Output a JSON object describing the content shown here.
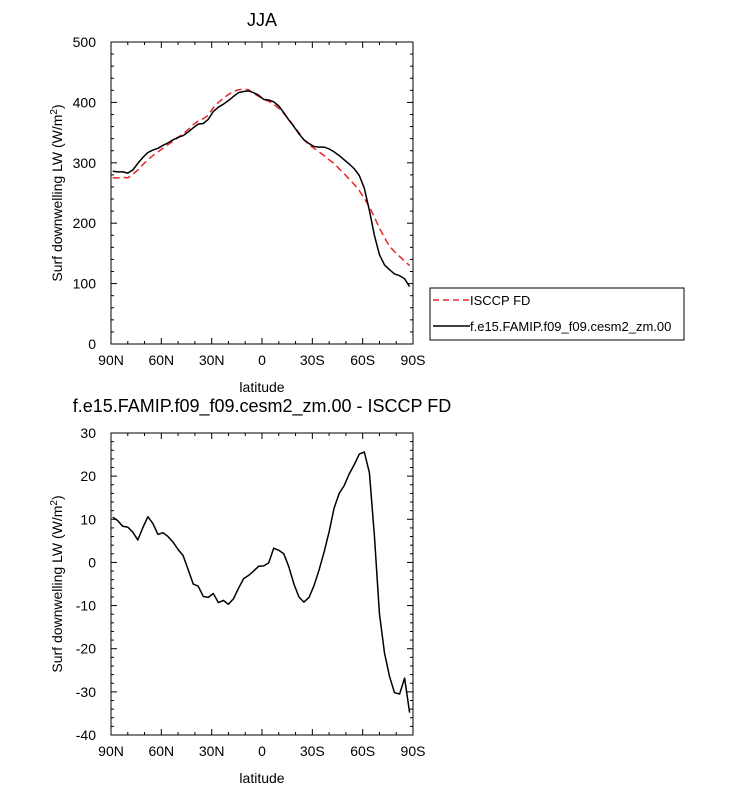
{
  "chart_data": [
    {
      "type": "line",
      "title": "JJA",
      "xlabel": "latitude",
      "ylabel": "Surf downwelling LW (W/m²)",
      "ylabel_main": "Surf downwelling LW (W/m",
      "ylabel_sup": "2",
      "ylabel_close": ")",
      "xlim": [
        90,
        -90
      ],
      "ylim": [
        0,
        500
      ],
      "xticks": [
        90,
        60,
        30,
        0,
        -30,
        -60,
        -90
      ],
      "xtick_labels": [
        "90N",
        "60N",
        "30N",
        "0",
        "30S",
        "60S",
        "90S"
      ],
      "yticks": [
        0,
        100,
        200,
        300,
        400,
        500
      ],
      "ytick_labels": [
        "0",
        "100",
        "200",
        "300",
        "400",
        "500"
      ],
      "legend": {
        "placement": "outside-right-bottom"
      },
      "series": [
        {
          "name": "ISCCP FD",
          "color": "#e8262a",
          "dash": "dashed",
          "x": [
            89,
            86,
            83,
            80,
            77,
            74,
            71,
            68,
            65,
            62,
            59,
            56,
            53,
            50,
            47,
            44,
            41,
            38,
            35,
            32,
            29,
            26,
            23,
            20,
            17,
            14,
            11,
            8,
            5,
            2,
            -1,
            -4,
            -7,
            -10,
            -13,
            -16,
            -19,
            -22,
            -25,
            -28,
            -31,
            -34,
            -37,
            -40,
            -43,
            -46,
            -49,
            -52,
            -55,
            -58,
            -61,
            -64,
            -67,
            -70,
            -73,
            -76,
            -79,
            -82,
            -85,
            -88
          ],
          "y": [
            275,
            275,
            276,
            275,
            281,
            288,
            297,
            305,
            312,
            318,
            324,
            330,
            336,
            342,
            348,
            355,
            363,
            369,
            373,
            379,
            391,
            400,
            407,
            413,
            418,
            421,
            422,
            421,
            415,
            410,
            405,
            402,
            397,
            390,
            382,
            372,
            361,
            350,
            338,
            330,
            324,
            318,
            312,
            305,
            299,
            290,
            282,
            273,
            264,
            254,
            241,
            227,
            210,
            192,
            176,
            162,
            153,
            145,
            137,
            130
          ]
        },
        {
          "name": "f.e15.FAMIP.f09_f09.cesm2_zm.00",
          "color": "#000000",
          "dash": "solid",
          "x": [
            89,
            86,
            83,
            80,
            77,
            74,
            71,
            68,
            65,
            62,
            59,
            56,
            53,
            50,
            47,
            44,
            41,
            38,
            35,
            32,
            29,
            26,
            23,
            20,
            17,
            14,
            11,
            8,
            5,
            2,
            -1,
            -4,
            -7,
            -10,
            -13,
            -16,
            -19,
            -22,
            -25,
            -28,
            -31,
            -34,
            -37,
            -40,
            -43,
            -46,
            -49,
            -52,
            -55,
            -58,
            -61,
            -64,
            -67,
            -70,
            -73,
            -76,
            -79,
            -82,
            -85,
            -88
          ],
          "y": [
            286,
            285,
            285,
            283,
            288,
            299,
            309,
            317,
            321,
            324,
            329,
            333,
            338,
            342,
            345,
            351,
            358,
            364,
            365,
            372,
            385,
            392,
            397,
            403,
            410,
            416,
            418,
            419,
            416,
            412,
            405,
            404,
            401,
            394,
            383,
            371,
            360,
            348,
            338,
            332,
            327,
            326,
            326,
            323,
            318,
            312,
            305,
            298,
            290,
            279,
            258,
            221,
            180,
            148,
            131,
            123,
            116,
            113,
            108,
            95
          ]
        }
      ]
    },
    {
      "type": "line",
      "title": "f.e15.FAMIP.f09_f09.cesm2_zm.00 - ISCCP FD",
      "xlabel": "latitude",
      "ylabel": "Surf downwelling LW (W/m²)",
      "ylabel_main": "Surf downwelling LW (W/m",
      "ylabel_sup": "2",
      "ylabel_close": ")",
      "xlim": [
        90,
        -90
      ],
      "ylim": [
        -40,
        30
      ],
      "xticks": [
        90,
        60,
        30,
        0,
        -30,
        -60,
        -90
      ],
      "xtick_labels": [
        "90N",
        "60N",
        "30N",
        "0",
        "30S",
        "60S",
        "90S"
      ],
      "yticks": [
        30,
        20,
        10,
        0,
        -10,
        -20,
        -30,
        -40
      ],
      "ytick_labels": [
        "30",
        "20",
        "10",
        "0",
        "-10",
        "-20",
        "-30",
        "-40"
      ],
      "series": [
        {
          "color": "#000000",
          "dash": "solid",
          "x": [
            89,
            86,
            83,
            80,
            77,
            74,
            71,
            68,
            65,
            62,
            59,
            56,
            53,
            50,
            47,
            44,
            41,
            38,
            35,
            32,
            29,
            26,
            23,
            20,
            17,
            14,
            11,
            8,
            5,
            2,
            -1,
            -4,
            -7,
            -10,
            -13,
            -16,
            -19,
            -22,
            -25,
            -28,
            -31,
            -34,
            -37,
            -40,
            -43,
            -46,
            -49,
            -52,
            -55,
            -58,
            -61,
            -64,
            -67,
            -70,
            -73,
            -76,
            -79,
            -82,
            -85,
            -88
          ],
          "y": [
            10.5,
            9.7,
            8.4,
            8.2,
            7.0,
            5.2,
            8.1,
            10.6,
            9.0,
            6.5,
            6.9,
            6.0,
            4.7,
            3.0,
            1.6,
            -1.7,
            -5.0,
            -5.5,
            -7.9,
            -8.1,
            -7.2,
            -9.3,
            -8.8,
            -9.7,
            -8.4,
            -6.0,
            -3.8,
            -3.0,
            -2.0,
            -0.9,
            -0.8,
            -0.1,
            3.3,
            2.8,
            2.0,
            -1.0,
            -5.0,
            -8.0,
            -9.2,
            -8.1,
            -5.4,
            -1.8,
            2.4,
            7.1,
            12.6,
            16.0,
            17.8,
            20.5,
            22.7,
            25.1,
            25.6,
            20.8,
            6.2,
            -11.8,
            -21.0,
            -26.4,
            -30.2,
            -30.5,
            -26.8,
            -34.8
          ]
        }
      ]
    }
  ]
}
